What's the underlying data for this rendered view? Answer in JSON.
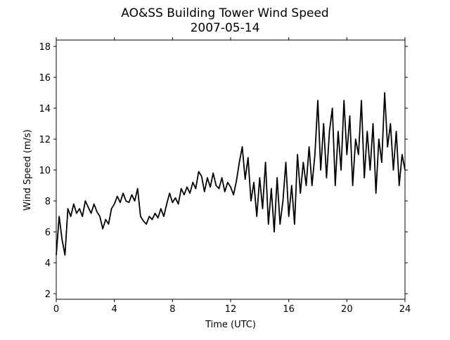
{
  "chart_data": {
    "type": "line",
    "title": "AO&SS Building Tower Wind Speed",
    "subtitle": "2007-05-14",
    "x_label": "Time (UTC)",
    "y_label": "Wind Speed (m/s)",
    "xlim": [
      0,
      24
    ],
    "xticks": [
      0,
      4,
      8,
      12,
      16,
      20,
      24
    ],
    "ylim": [
      1.64,
      18.41
    ],
    "yticks": [
      2,
      4,
      6,
      8,
      10,
      12,
      14,
      16,
      18
    ],
    "x": [
      0,
      0.2,
      0.4,
      0.6,
      0.8,
      1,
      1.2,
      1.4,
      1.6,
      1.8,
      2,
      2.2,
      2.4,
      2.6,
      2.8,
      3,
      3.2,
      3.4,
      3.6,
      3.8,
      4,
      4.2,
      4.4,
      4.6,
      4.8,
      5,
      5.2,
      5.4,
      5.6,
      5.8,
      6,
      6.2,
      6.4,
      6.6,
      6.8,
      7,
      7.2,
      7.4,
      7.6,
      7.8,
      8,
      8.2,
      8.4,
      8.6,
      8.8,
      9,
      9.2,
      9.4,
      9.6,
      9.8,
      10,
      10.2,
      10.4,
      10.6,
      10.8,
      11,
      11.2,
      11.4,
      11.6,
      11.8,
      12,
      12.2,
      12.4,
      12.6,
      12.8,
      13,
      13.2,
      13.4,
      13.6,
      13.8,
      14,
      14.2,
      14.4,
      14.6,
      14.8,
      15,
      15.2,
      15.4,
      15.6,
      15.8,
      16,
      16.2,
      16.4,
      16.6,
      16.8,
      17,
      17.2,
      17.4,
      17.6,
      17.8,
      18,
      18.2,
      18.4,
      18.6,
      18.8,
      19,
      19.2,
      19.4,
      19.6,
      19.8,
      20,
      20.2,
      20.4,
      20.6,
      20.8,
      21,
      21.2,
      21.4,
      21.6,
      21.8,
      22,
      22.2,
      22.4,
      22.6,
      22.8,
      23,
      23.2,
      23.4,
      23.6,
      23.8,
      24
    ],
    "series": [
      {
        "name": "Wind Speed",
        "color": "#000000",
        "values": [
          4.5,
          7.0,
          5.5,
          4.5,
          7.5,
          7.0,
          7.8,
          7.2,
          7.5,
          7.0,
          8.0,
          7.6,
          7.2,
          7.8,
          7.3,
          7.0,
          6.2,
          6.8,
          6.5,
          7.5,
          7.8,
          8.3,
          7.9,
          8.5,
          8.0,
          7.9,
          8.4,
          8.0,
          8.8,
          7.0,
          6.7,
          6.5,
          7.0,
          6.8,
          7.2,
          6.9,
          7.5,
          7.0,
          7.8,
          8.5,
          7.9,
          8.2,
          7.8,
          8.8,
          8.4,
          8.9,
          8.5,
          9.2,
          8.8,
          9.9,
          9.6,
          8.6,
          9.5,
          8.9,
          9.8,
          9.0,
          8.8,
          9.5,
          8.6,
          9.2,
          8.9,
          8.4,
          9.3,
          10.5,
          11.5,
          9.4,
          10.8,
          8.0,
          9.2,
          7.0,
          9.5,
          7.5,
          10.5,
          6.5,
          8.8,
          6.0,
          9.5,
          6.5,
          8.0,
          10.5,
          7.0,
          9.0,
          6.5,
          11.0,
          8.5,
          10.5,
          9.0,
          11.5,
          9.0,
          11.0,
          14.5,
          10.0,
          13.0,
          9.5,
          12.5,
          14.0,
          9.0,
          12.5,
          10.0,
          14.5,
          11.0,
          13.5,
          9.0,
          12.0,
          11.0,
          14.5,
          9.5,
          12.5,
          10.0,
          13.0,
          8.5,
          12.0,
          10.5,
          15.0,
          11.5,
          13.0,
          10.0,
          12.5,
          9.0,
          11.0,
          10.0
        ]
      }
    ]
  }
}
